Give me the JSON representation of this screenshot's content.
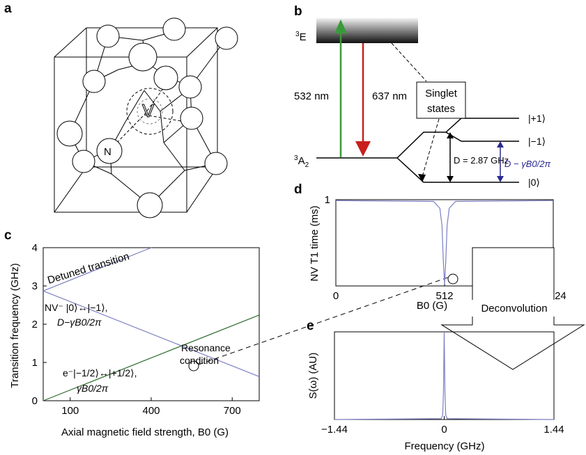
{
  "panels": {
    "a": "a",
    "b": "b",
    "c": "c",
    "d": "d",
    "e": "e"
  },
  "a": {
    "nitrogen_label": "N",
    "vacancy_label": "V"
  },
  "b": {
    "excited_state": "3E",
    "ground_state": "3A2",
    "laser_in": "532 nm",
    "laser_out": "637 nm",
    "singlet": [
      "Singlet",
      "states"
    ],
    "levels": [
      "|+1⟩",
      "|−1⟩",
      "|0⟩"
    ],
    "zero_field": "D = 2.87 GHz",
    "shifted": "D − γB0/2π",
    "colors": {
      "green": "#3a9a3a",
      "red": "#c8201e",
      "blue": "#2a2a90"
    }
  },
  "c": {
    "ylabel": "Transition frequency (GHz)",
    "xlabel": "Axial magnetic field strength, B0 (G)",
    "annotations": {
      "detuned": "Detuned transition",
      "nv": "NV⁻ |0⟩↔|−1⟩,",
      "nv_formula": "D−γB0/2π",
      "resonance": [
        "Resonance",
        "condition"
      ],
      "electron": "e⁻|−1/2⟩↔|+1/2⟩,",
      "electron_formula": "γB0/2π"
    }
  },
  "d": {
    "ylabel": "NV T1 time (ms)",
    "xlabel": "B0 (G)",
    "arrow_label": "Deconvolution"
  },
  "e": {
    "ylabel": "S(ω) (AU)",
    "xlabel": "Frequency (GHz)"
  },
  "chart_data": [
    {
      "type": "line",
      "panel": "c",
      "xlabel": "Axial magnetic field strength, B0 (G)",
      "ylabel": "Transition frequency (GHz)",
      "xlim": [
        0,
        800
      ],
      "ylim": [
        0,
        4
      ],
      "x_ticks": [
        100,
        400,
        700
      ],
      "y_ticks": [
        0,
        1,
        2,
        3,
        4
      ],
      "series": [
        {
          "x": [
            0,
            400
          ],
          "y": [
            2.87,
            4.0
          ],
          "color": "#7b7fc2"
        },
        {
          "x": [
            0,
            800
          ],
          "y": [
            2.87,
            0.63
          ],
          "color": "#7b7fc2"
        },
        {
          "x": [
            0,
            800
          ],
          "y": [
            0.0,
            2.24
          ],
          "color": "#2e6b2e"
        }
      ]
    },
    {
      "type": "line",
      "panel": "d",
      "xlabel": "B0 (G)",
      "ylabel": "NV T1 time (ms)",
      "xlim": [
        0,
        1024
      ],
      "ylim": [
        0,
        1
      ],
      "x_ticks": [
        0,
        512,
        "1,024"
      ],
      "y_ticks": [
        1
      ],
      "series": [
        {
          "x": [
            0,
            460,
            490,
            500,
            506,
            512,
            518,
            524,
            534,
            564,
            1024
          ],
          "y": [
            0.99,
            0.98,
            0.9,
            0.7,
            0.3,
            0.02,
            0.3,
            0.7,
            0.9,
            0.98,
            0.99
          ],
          "color": "#7b7fc2"
        }
      ]
    },
    {
      "type": "line",
      "panel": "e",
      "xlabel": "Frequency (GHz)",
      "ylabel": "S(ω) (AU)",
      "xlim": [
        -1.44,
        1.44
      ],
      "ylim": [
        0,
        1
      ],
      "x_ticks": [
        "−1.44",
        "0",
        "1.44"
      ],
      "series": [
        {
          "x": [
            -1.44,
            -0.04,
            -0.02,
            -0.01,
            0,
            0.01,
            0.02,
            0.04,
            1.44
          ],
          "y": [
            0,
            0.01,
            0.05,
            0.3,
            1,
            0.3,
            0.05,
            0.01,
            0
          ],
          "color": "#7b7fc2"
        }
      ]
    }
  ]
}
